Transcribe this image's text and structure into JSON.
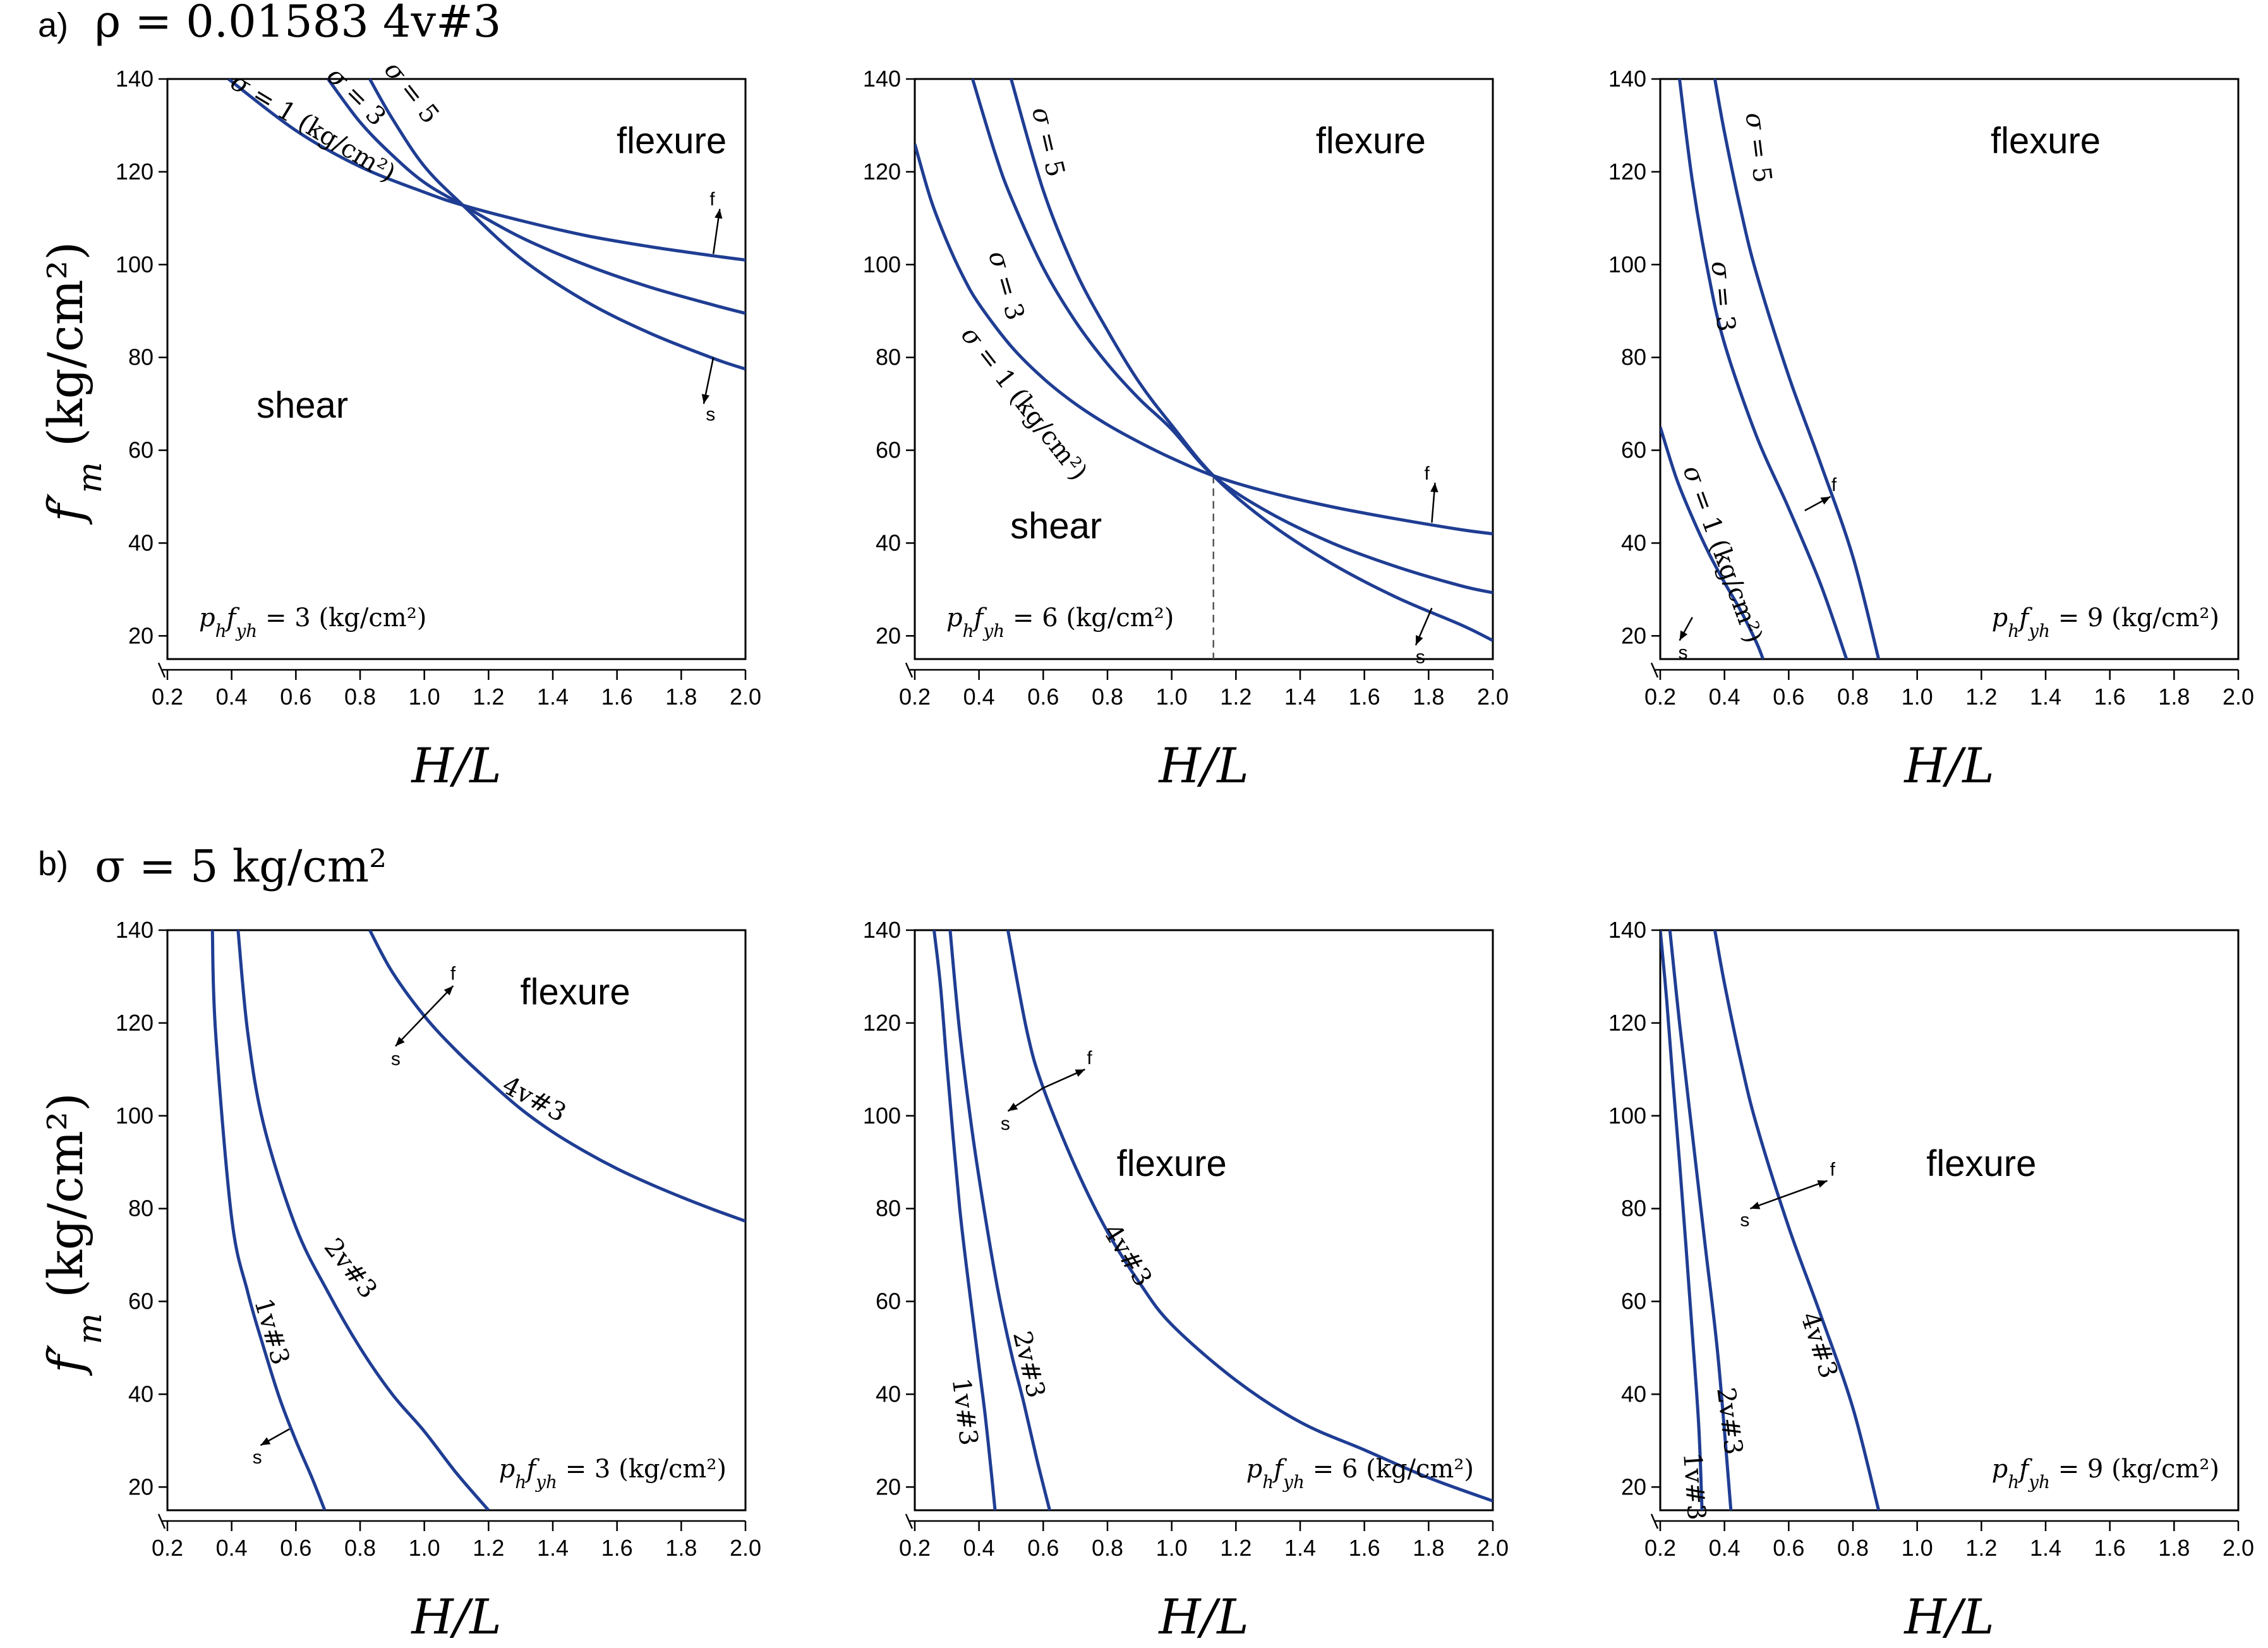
{
  "figure": {
    "row_a_label": "a)",
    "row_a_title": "ρ = 0.01583   4v#3",
    "row_b_label": "b)",
    "row_b_title": "σ = 5   kg/cm²",
    "y_axis_title": "f′m  (kg/cm²)",
    "x_axis_title": "H/L"
  },
  "colors": {
    "curve": "#1f3d93",
    "axis": "#000000"
  },
  "chart_data": [
    {
      "type": "line",
      "row": "a",
      "panel": 1,
      "x_ticks": [
        "0.2",
        "0.4",
        "0.6",
        "0.8",
        "1.0",
        "1.2",
        "1.4",
        "1.6",
        "1.8",
        "2.0"
      ],
      "y_ticks": [
        "20",
        "40",
        "60",
        "80",
        "100",
        "120",
        "140"
      ],
      "xlim": [
        0.2,
        2.0
      ],
      "ylim": [
        15,
        140
      ],
      "xlabel": "H/L",
      "ylabel": "f′m (kg/cm²)",
      "annotation": "p_h f_yh = 3 (kg/cm²)",
      "regions": [
        {
          "text": "flexure",
          "x": 1.77,
          "y": 124
        },
        {
          "text": "shear",
          "x": 0.62,
          "y": 67
        }
      ],
      "series": [
        {
          "name": "σ = 1 (kg/cm²)",
          "x": [
            0.39,
            0.6,
            0.8,
            1.0,
            1.12,
            1.3,
            1.5,
            1.7,
            1.9,
            2.0
          ],
          "y": [
            140,
            128.9,
            121.1,
            115.6,
            112.8,
            109.5,
            106.3,
            103.9,
            101.9,
            101
          ]
        },
        {
          "name": "σ = 3",
          "x": [
            0.7,
            0.8,
            0.9,
            1.0,
            1.12,
            1.3,
            1.5,
            1.7,
            1.9,
            2.0
          ],
          "y": [
            140,
            130.7,
            123.6,
            117.7,
            112.8,
            105.9,
            100,
            95.2,
            91.3,
            89.5
          ]
        },
        {
          "name": "σ = 5",
          "x": [
            0.83,
            0.9,
            1.0,
            1.12,
            1.3,
            1.5,
            1.7,
            1.9,
            2.0
          ],
          "y": [
            140,
            131.5,
            121.2,
            112.8,
            101.4,
            92.2,
            85.3,
            79.8,
            77.5
          ]
        }
      ],
      "curve_labels": [
        {
          "text": "σ = 1 (kg/cm²)",
          "x": 0.64,
          "y": 128,
          "angle": 31
        },
        {
          "text": "σ = 3",
          "x": 0.77,
          "y": 135,
          "angle": 45
        },
        {
          "text": "σ = 5",
          "x": 0.94,
          "y": 136,
          "angle": 52
        }
      ],
      "arrows": [
        {
          "label": "f",
          "x": 1.9,
          "y": 102.3,
          "to_x": 1.92,
          "to_y": 112
        },
        {
          "label": "s",
          "x": 1.9,
          "y": 80,
          "to_x": 1.87,
          "to_y": 70
        }
      ]
    },
    {
      "type": "line",
      "row": "a",
      "panel": 2,
      "x_ticks": [
        "0.2",
        "0.4",
        "0.6",
        "0.8",
        "1.0",
        "1.2",
        "1.4",
        "1.6",
        "1.8",
        "2.0"
      ],
      "y_ticks": [
        "20",
        "40",
        "60",
        "80",
        "100",
        "120",
        "140"
      ],
      "xlim": [
        0.2,
        2.0
      ],
      "ylim": [
        15,
        140
      ],
      "xlabel": "H/L",
      "ylabel": "f′m (kg/cm²)",
      "annotation": "p_h f_yh = 6 (kg/cm²)",
      "regions": [
        {
          "text": "flexure",
          "x": 1.62,
          "y": 124
        },
        {
          "text": "shear",
          "x": 0.64,
          "y": 41
        }
      ],
      "series": [
        {
          "name": "σ = 1 (kg/cm²)",
          "x": [
            0.2,
            0.25,
            0.3,
            0.35,
            0.4,
            0.5,
            0.6,
            0.7,
            0.8,
            0.9,
            1.0,
            1.13,
            1.3,
            1.5,
            1.7,
            1.9,
            2.0
          ],
          "y": [
            126,
            114,
            105,
            97.5,
            91.5,
            82.4,
            75.5,
            70,
            65.5,
            61.7,
            58.3,
            54.5,
            51,
            47.8,
            45.2,
            42.9,
            42
          ]
        },
        {
          "name": "σ = 3",
          "x": [
            0.38,
            0.45,
            0.5,
            0.6,
            0.7,
            0.8,
            0.9,
            1.0,
            1.13,
            1.3,
            1.5,
            1.7,
            1.9,
            2.0
          ],
          "y": [
            140,
            124,
            114.5,
            99.3,
            87.8,
            78.6,
            71,
            64.5,
            54.5,
            46.7,
            40,
            34.9,
            30.8,
            29.3
          ]
        },
        {
          "name": "σ = 5",
          "x": [
            0.5,
            0.6,
            0.7,
            0.8,
            0.9,
            1.0,
            1.13,
            1.3,
            1.5,
            1.7,
            1.9,
            2.0
          ],
          "y": [
            140,
            116,
            98.7,
            85.8,
            74.5,
            65.4,
            54.5,
            44.5,
            35.5,
            28.3,
            22.4,
            19
          ]
        }
      ],
      "curve_labels": [
        {
          "text": "σ = 1 (kg/cm²)",
          "x": 0.52,
          "y": 69,
          "angle": 52
        },
        {
          "text": "σ = 3",
          "x": 0.46,
          "y": 95,
          "angle": 74
        },
        {
          "text": "σ = 5",
          "x": 0.59,
          "y": 126,
          "angle": 77
        }
      ],
      "reference_line": {
        "x": 1.13,
        "y_top": 54.5
      },
      "arrows": [
        {
          "label": "f",
          "x": 1.81,
          "y": 44.4,
          "to_x": 1.82,
          "to_y": 53
        },
        {
          "label": "s",
          "x": 1.81,
          "y": 26,
          "to_x": 1.76,
          "to_y": 18
        }
      ]
    },
    {
      "type": "line",
      "row": "a",
      "panel": 3,
      "x_ticks": [
        "0.2",
        "0.4",
        "0.6",
        "0.8",
        "1.0",
        "1.2",
        "1.4",
        "1.6",
        "1.8",
        "2.0"
      ],
      "y_ticks": [
        "20",
        "40",
        "60",
        "80",
        "100",
        "120",
        "140"
      ],
      "xlim": [
        0.2,
        2.0
      ],
      "ylim": [
        15,
        140
      ],
      "xlabel": "H/L",
      "ylabel": "f′m (kg/cm²)",
      "annotation": "p_h f_yh = 9 (kg/cm²)",
      "regions": [
        {
          "text": "flexure",
          "x": 1.4,
          "y": 124
        }
      ],
      "series": [
        {
          "name": "σ = 1 (kg/cm²)",
          "x": [
            0.2,
            0.25,
            0.3,
            0.35,
            0.4,
            0.45,
            0.5,
            0.52
          ],
          "y": [
            65,
            54,
            45.5,
            38,
            31.5,
            25.5,
            18.5,
            15
          ]
        },
        {
          "name": "σ = 3",
          "x": [
            0.26,
            0.3,
            0.35,
            0.4,
            0.5,
            0.6,
            0.7,
            0.78
          ],
          "y": [
            140,
            118,
            98,
            83,
            63,
            47.5,
            31,
            15
          ]
        },
        {
          "name": "σ = 5",
          "x": [
            0.37,
            0.4,
            0.45,
            0.5,
            0.6,
            0.7,
            0.8,
            0.88
          ],
          "y": [
            140,
            128.5,
            112,
            98,
            76,
            57,
            37,
            15
          ]
        }
      ],
      "curve_labels": [
        {
          "text": "σ = 1 (kg/cm²)",
          "x": 0.37,
          "y": 37,
          "angle": 70
        },
        {
          "text": "σ = 3",
          "x": 0.37,
          "y": 93,
          "angle": 85
        },
        {
          "text": "σ = 5",
          "x": 0.48,
          "y": 125,
          "angle": 83
        }
      ],
      "arrows": [
        {
          "label": "f",
          "x": 0.65,
          "y": 47,
          "to_x": 0.73,
          "to_y": 50
        },
        {
          "label": "s",
          "x": 0.3,
          "y": 24,
          "to_x": 0.26,
          "to_y": 19
        }
      ]
    },
    {
      "type": "line",
      "row": "b",
      "panel": 1,
      "x_ticks": [
        "0.2",
        "0.4",
        "0.6",
        "0.8",
        "1.0",
        "1.2",
        "1.4",
        "1.6",
        "1.8",
        "2.0"
      ],
      "y_ticks": [
        "20",
        "40",
        "60",
        "80",
        "100",
        "120",
        "140"
      ],
      "xlim": [
        0.2,
        2.0
      ],
      "ylim": [
        15,
        140
      ],
      "xlabel": "H/L",
      "ylabel": "f′m (kg/cm²)",
      "annotation": "p_h f_yh = 3 (kg/cm²)",
      "regions": [
        {
          "text": "flexure",
          "x": 1.47,
          "y": 124
        }
      ],
      "series": [
        {
          "name": "1v#3",
          "x": [
            0.34,
            0.35,
            0.4,
            0.45,
            0.5,
            0.55,
            0.6,
            0.65,
            0.69
          ],
          "y": [
            140,
            118,
            78,
            62,
            50,
            39,
            30,
            22,
            15
          ]
        },
        {
          "name": "2v#3",
          "x": [
            0.42,
            0.45,
            0.5,
            0.6,
            0.7,
            0.8,
            0.9,
            1.0,
            1.1,
            1.2
          ],
          "y": [
            140,
            118,
            98,
            76,
            62,
            50,
            40,
            32,
            23,
            15
          ]
        },
        {
          "name": "4v#3",
          "x": [
            0.83,
            0.9,
            1.0,
            1.1,
            1.2,
            1.3,
            1.4,
            1.5,
            1.6,
            1.7,
            1.8,
            1.9,
            2.0
          ],
          "y": [
            140,
            131,
            121.5,
            114,
            107.5,
            101.5,
            96.5,
            92.3,
            88.6,
            85.4,
            82.5,
            79.8,
            77.3
          ]
        }
      ],
      "curve_labels": [
        {
          "text": "1v#3",
          "x": 0.5,
          "y": 53,
          "angle": 74
        },
        {
          "text": "2v#3",
          "x": 0.75,
          "y": 66,
          "angle": 52
        },
        {
          "text": "4v#3",
          "x": 1.33,
          "y": 102,
          "angle": 28
        }
      ],
      "arrows": [
        {
          "label": "f",
          "x": 1.0,
          "y": 121.5,
          "to_x": 1.09,
          "to_y": 128
        },
        {
          "label": "s",
          "x": 1.0,
          "y": 121.5,
          "to_x": 0.91,
          "to_y": 115
        },
        {
          "label": "s",
          "x": 0.58,
          "y": 32.5,
          "to_x": 0.49,
          "to_y": 29
        }
      ]
    },
    {
      "type": "line",
      "row": "b",
      "panel": 2,
      "x_ticks": [
        "0.2",
        "0.4",
        "0.6",
        "0.8",
        "1.0",
        "1.2",
        "1.4",
        "1.6",
        "1.8",
        "2.0"
      ],
      "y_ticks": [
        "20",
        "40",
        "60",
        "80",
        "100",
        "120",
        "140"
      ],
      "xlim": [
        0.2,
        2.0
      ],
      "ylim": [
        15,
        140
      ],
      "xlabel": "H/L",
      "ylabel": "f′m (kg/cm²)",
      "annotation": "p_h f_yh = 6 (kg/cm²)",
      "regions": [
        {
          "text": "flexure",
          "x": 1.0,
          "y": 87
        }
      ],
      "series": [
        {
          "name": "1v#3",
          "x": [
            0.26,
            0.28,
            0.3,
            0.32,
            0.34,
            0.36,
            0.38,
            0.4,
            0.42,
            0.44,
            0.45
          ],
          "y": [
            140,
            128,
            111,
            95,
            80,
            68,
            57,
            46,
            35,
            22,
            15
          ]
        },
        {
          "name": "2v#3",
          "x": [
            0.31,
            0.34,
            0.38,
            0.42,
            0.46,
            0.5,
            0.54,
            0.58,
            0.62
          ],
          "y": [
            140,
            118,
            96,
            78,
            62,
            49,
            38,
            26,
            15
          ]
        },
        {
          "name": "4v#3",
          "x": [
            0.49,
            0.55,
            0.6,
            0.7,
            0.8,
            0.9,
            1.0,
            1.2,
            1.4,
            1.6,
            1.8,
            2.0
          ],
          "y": [
            140,
            118,
            106,
            89,
            75,
            64,
            55,
            43,
            34,
            28,
            22,
            17
          ]
        }
      ],
      "curve_labels": [
        {
          "text": "1v#3",
          "x": 0.33,
          "y": 36,
          "angle": 83
        },
        {
          "text": "2v#3",
          "x": 0.53,
          "y": 46,
          "angle": 77
        },
        {
          "text": "4v#3",
          "x": 0.84,
          "y": 69,
          "angle": 58
        }
      ],
      "arrows": [
        {
          "label": "f",
          "x": 0.6,
          "y": 106,
          "to_x": 0.73,
          "to_y": 110
        },
        {
          "label": "s",
          "x": 0.6,
          "y": 106,
          "to_x": 0.49,
          "to_y": 101
        }
      ]
    },
    {
      "type": "line",
      "row": "b",
      "panel": 3,
      "x_ticks": [
        "0.2",
        "0.4",
        "0.6",
        "0.8",
        "1.0",
        "1.2",
        "1.4",
        "1.6",
        "1.8",
        "2.0"
      ],
      "y_ticks": [
        "20",
        "40",
        "60",
        "80",
        "100",
        "120",
        "140"
      ],
      "xlim": [
        0.2,
        2.0
      ],
      "ylim": [
        15,
        140
      ],
      "xlabel": "H/L",
      "ylabel": "f′m (kg/cm²)",
      "annotation": "p_h f_yh = 9 (kg/cm²)",
      "regions": [
        {
          "text": "flexure",
          "x": 1.2,
          "y": 87
        }
      ],
      "series": [
        {
          "name": "1v#3",
          "x": [
            0.2,
            0.22,
            0.24,
            0.26,
            0.28,
            0.3,
            0.32,
            0.33
          ],
          "y": [
            140,
            125,
            107,
            90,
            72,
            53,
            33,
            15
          ]
        },
        {
          "name": "2v#3",
          "x": [
            0.23,
            0.26,
            0.3,
            0.34,
            0.38,
            0.42
          ],
          "y": [
            140,
            120,
            96,
            72,
            48,
            15
          ]
        },
        {
          "name": "4v#3",
          "x": [
            0.37,
            0.4,
            0.45,
            0.5,
            0.6,
            0.7,
            0.8,
            0.88
          ],
          "y": [
            140,
            128.5,
            112,
            98,
            76,
            57,
            37,
            15
          ]
        }
      ],
      "curve_labels": [
        {
          "text": "1v#3",
          "x": 0.28,
          "y": 20,
          "angle": 86
        },
        {
          "text": "2v#3",
          "x": 0.39,
          "y": 34,
          "angle": 83
        },
        {
          "text": "4v#3",
          "x": 0.67,
          "y": 50,
          "angle": 72
        }
      ],
      "arrows": [
        {
          "label": "f",
          "x": 0.6,
          "y": 83,
          "to_x": 0.72,
          "to_y": 86
        },
        {
          "label": "s",
          "x": 0.6,
          "y": 83,
          "to_x": 0.48,
          "to_y": 80
        }
      ]
    }
  ]
}
